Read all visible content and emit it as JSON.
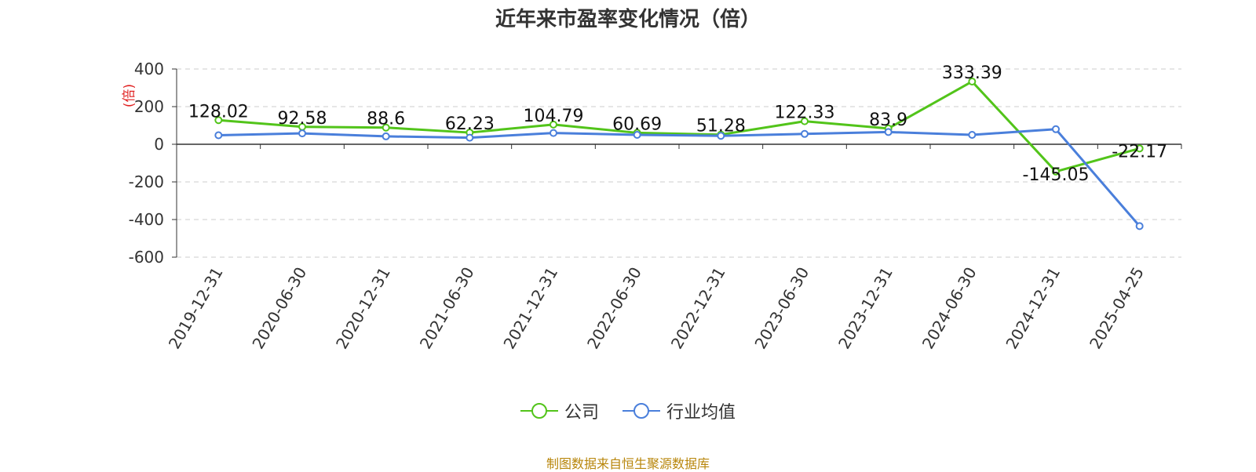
{
  "chart_data": {
    "type": "line",
    "title": "近年来市盈率变化情况（倍）",
    "ylabel": "(倍)",
    "categories": [
      "2019-12-31",
      "2020-06-30",
      "2020-12-31",
      "2021-06-30",
      "2021-12-31",
      "2022-06-30",
      "2022-12-31",
      "2023-06-30",
      "2023-12-31",
      "2024-06-30",
      "2024-12-31",
      "2025-04-25"
    ],
    "ylim": [
      -600,
      400
    ],
    "yticks": [
      "400",
      "200",
      "0",
      "-200",
      "-400",
      "-600"
    ],
    "grid": true,
    "legend_position": "bottom",
    "series": [
      {
        "name": "公司",
        "color": "#52c41a",
        "values": [
          128.02,
          92.58,
          88.6,
          62.23,
          104.79,
          60.69,
          51.28,
          122.33,
          83.9,
          333.39,
          -145.05,
          -22.17
        ],
        "labels": [
          "128.02",
          "92.58",
          "88.6",
          "62.23",
          "104.79",
          "60.69",
          "51.28",
          "122.33",
          "83.9",
          "333.39",
          "-145.05",
          "-22.17"
        ]
      },
      {
        "name": "行业均值",
        "color": "#4a7fdb",
        "values": [
          48,
          58,
          42,
          35,
          60,
          50,
          45,
          55,
          65,
          50,
          80,
          -435
        ]
      }
    ]
  },
  "source": "制图数据来自恒生聚源数据库"
}
